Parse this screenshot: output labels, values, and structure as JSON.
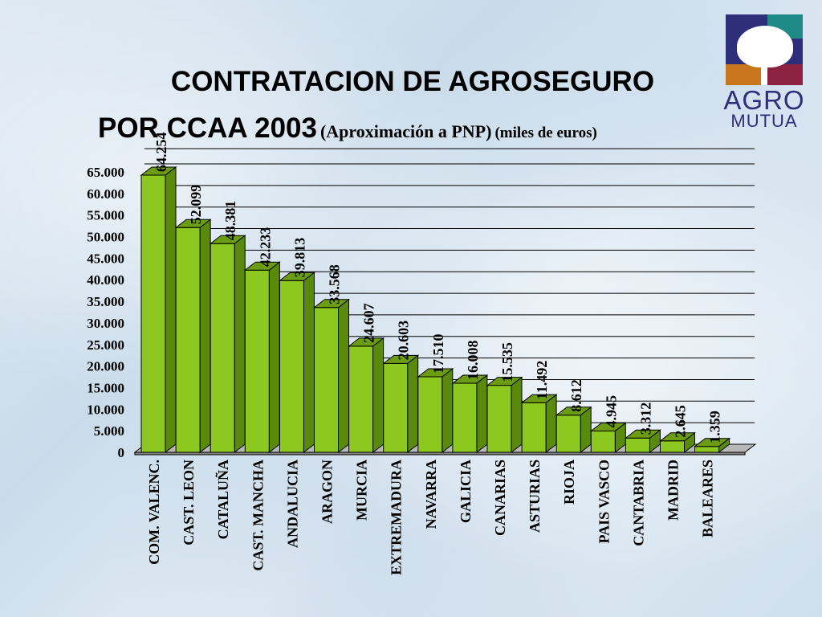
{
  "title_line1": "CONTRATACION DE AGROSEGURO",
  "title_line2_main": "POR CCAA 2003",
  "title_line2_sub": "(Aproximación a PNP)",
  "title_line2_unit": "(miles de euros)",
  "logo": {
    "line1": "AGRO",
    "line2": "MUTUA",
    "colors": [
      "#2f2e7a",
      "#1f8a86",
      "#c8761c",
      "#8e2243"
    ]
  },
  "chart_data": {
    "type": "bar",
    "style": "3d",
    "title": "CONTRATACION DE AGROSEGURO POR CCAA 2003",
    "subtitle": "(Aproximación a PNP) (miles de euros)",
    "xlabel": "",
    "ylabel": "",
    "ylim": [
      0,
      65000
    ],
    "yticks": [
      0,
      5000,
      10000,
      15000,
      20000,
      25000,
      30000,
      35000,
      40000,
      45000,
      50000,
      55000,
      60000,
      65000
    ],
    "ytick_labels": [
      "0",
      "5.000",
      "10.000",
      "15.000",
      "20.000",
      "25.000",
      "30.000",
      "35.000",
      "40.000",
      "45.000",
      "50.000",
      "55.000",
      "60.000",
      "65.000"
    ],
    "grid": true,
    "bar_color": "#8cc820",
    "categories": [
      "COM. VALENC.",
      "CAST. LEON",
      "CATALUÑA",
      "CAST. MANCHA",
      "ANDALUCIA",
      "ARAGON",
      "MURCIA",
      "EXTREMADURA",
      "NAVARRA",
      "GALICIA",
      "CANARIAS",
      "ASTURIAS",
      "RIOJA",
      "PAIS VASCO",
      "CANTABRIA",
      "MADRID",
      "BALEARES"
    ],
    "values": [
      64254,
      52099,
      48381,
      42233,
      39813,
      33568,
      24607,
      20603,
      17510,
      16008,
      15535,
      11492,
      8612,
      4945,
      3312,
      2645,
      1359
    ],
    "value_labels": [
      "64.254",
      "52.099",
      "48.381",
      "42.233",
      "39.813",
      "33.568",
      "24.607",
      "20.603",
      "17.510",
      "16.008",
      "15.535",
      "11.492",
      "8.612",
      "4.945",
      "3.312",
      "2.645",
      "1.359"
    ]
  }
}
